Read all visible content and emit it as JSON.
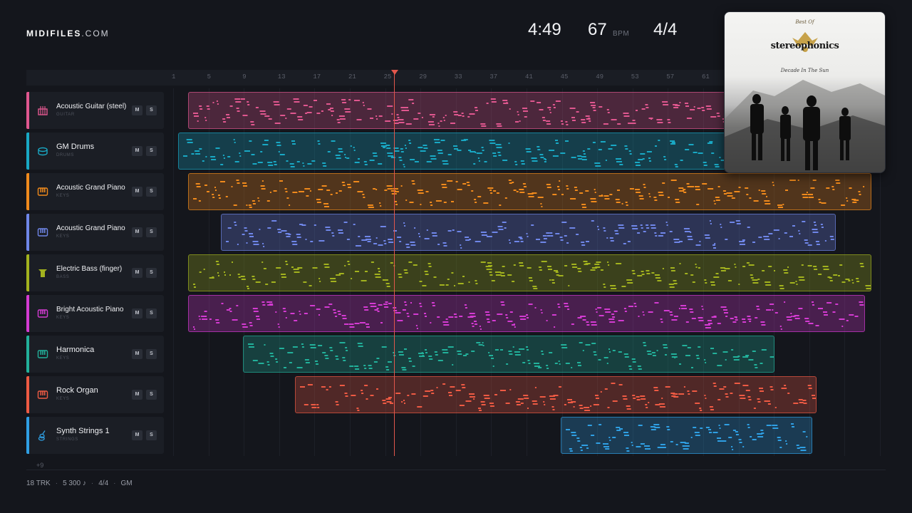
{
  "app": {
    "logo_bold": "MIDIFILES",
    "logo_light": ".COM"
  },
  "header": {
    "duration": "4:49",
    "tempo": "67",
    "tempo_unit": "BPM",
    "time_signature": "4/4"
  },
  "ruler": {
    "ticks": [
      "1",
      "5",
      "9",
      "13",
      "17",
      "21",
      "25",
      "29",
      "33",
      "37",
      "41",
      "45",
      "49",
      "53",
      "57",
      "61"
    ]
  },
  "playhead": {
    "bar": 26
  },
  "tracks": [
    {
      "name": "Acoustic Guitar (steel)",
      "category": "GUITAR",
      "icon": "guitar-icon",
      "color": "#e0578f",
      "mute": "M",
      "solo": "S",
      "clip_start": 2.7,
      "clip_end": 65.0
    },
    {
      "name": "GM Drums",
      "category": "DRUMS",
      "icon": "drum-icon",
      "color": "#19a8c4",
      "mute": "M",
      "solo": "S",
      "clip_start": 1.6,
      "clip_end": 65.0
    },
    {
      "name": "Acoustic Grand Piano",
      "category": "KEYS",
      "icon": "piano-keys-icon",
      "color": "#f08a1c",
      "mute": "M",
      "solo": "S",
      "clip_start": 2.7,
      "clip_end": 80.0
    },
    {
      "name": "Acoustic Grand Piano",
      "category": "KEYS",
      "icon": "piano-keys-icon",
      "color": "#6f86e8",
      "mute": "M",
      "solo": "S",
      "clip_start": 6.4,
      "clip_end": 76.0
    },
    {
      "name": "Electric Bass (finger)",
      "category": "BASS",
      "icon": "bass-icon",
      "color": "#a2b21e",
      "mute": "M",
      "solo": "S",
      "clip_start": 2.7,
      "clip_end": 80.0
    },
    {
      "name": "Bright Acoustic Piano",
      "category": "KEYS",
      "icon": "piano-keys-icon",
      "color": "#d43bd2",
      "mute": "M",
      "solo": "S",
      "clip_start": 2.7,
      "clip_end": 79.3
    },
    {
      "name": "Harmonica",
      "category": "KEYS",
      "icon": "piano-keys-icon",
      "color": "#22b09a",
      "mute": "M",
      "solo": "S",
      "clip_start": 8.9,
      "clip_end": 69.1
    },
    {
      "name": "Rock Organ",
      "category": "KEYS",
      "icon": "piano-keys-icon",
      "color": "#ee5a43",
      "mute": "M",
      "solo": "S",
      "clip_start": 14.8,
      "clip_end": 73.8
    },
    {
      "name": "Synth Strings 1",
      "category": "STRINGS",
      "icon": "violin-icon",
      "color": "#2f9fe3",
      "mute": "M",
      "solo": "S",
      "clip_start": 44.9,
      "clip_end": 73.3
    }
  ],
  "more_tracks": "+9",
  "footer": {
    "tracks": "18 TRK",
    "notes": "5 300 ♪",
    "time_signature": "4/4",
    "standard": "GM"
  },
  "album": {
    "kicker": "Best Of",
    "artist": "stereophonics",
    "title": "Decade In The Sun"
  }
}
